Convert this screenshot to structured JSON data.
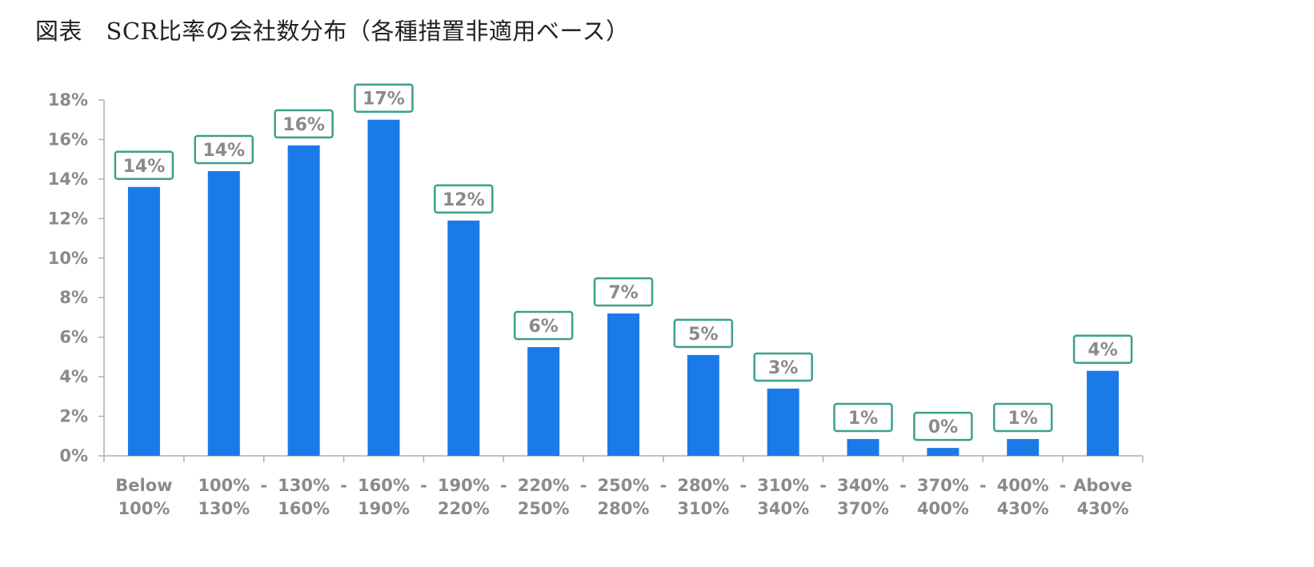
{
  "title": "図表　SCR比率の会社数分布（各種措置非適用ベース）",
  "chart_data": {
    "type": "bar",
    "title": "図表　SCR比率の会社数分布（各種措置非適用ベース）",
    "xlabel": "",
    "ylabel": "",
    "ylim": [
      0,
      18
    ],
    "yticks": [
      "0%",
      "2%",
      "4%",
      "6%",
      "8%",
      "10%",
      "12%",
      "14%",
      "16%",
      "18%"
    ],
    "ytick_values": [
      0,
      2,
      4,
      6,
      8,
      10,
      12,
      14,
      16,
      18
    ],
    "categories": [
      [
        "Below",
        "100%"
      ],
      [
        "100% -",
        "130%"
      ],
      [
        "130% -",
        "160%"
      ],
      [
        "160% -",
        "190%"
      ],
      [
        "190% -",
        "220%"
      ],
      [
        "220% -",
        "250%"
      ],
      [
        "250% -",
        "280%"
      ],
      [
        "280% -",
        "310%"
      ],
      [
        "310% -",
        "340%"
      ],
      [
        "340% -",
        "370%"
      ],
      [
        "370% -",
        "400%"
      ],
      [
        "400% -",
        "430%"
      ],
      [
        "Above",
        "430%"
      ]
    ],
    "category_lines": [
      [
        "Below",
        "100%"
      ],
      [
        "100%",
        "-130%",
        "130%"
      ],
      [
        "-130%",
        "160%"
      ],
      [
        "-160%",
        "190%"
      ],
      [
        "-190%",
        "220%"
      ],
      [
        "-220%",
        "250%"
      ],
      [
        "-250%",
        "280%"
      ],
      [
        "-280%",
        "310%"
      ],
      [
        "-310%",
        "340%"
      ],
      [
        "-340%",
        "370%"
      ],
      [
        "-370%",
        "400%"
      ],
      [
        "-400%",
        "430%"
      ],
      [
        "-",
        "Above",
        "430%"
      ]
    ],
    "values": [
      13.6,
      14.4,
      15.7,
      17.0,
      11.9,
      5.5,
      7.2,
      5.1,
      3.4,
      0.85,
      0.4,
      0.85,
      4.3
    ],
    "data_labels": [
      "14%",
      "14%",
      "16%",
      "17%",
      "12%",
      "6%",
      "7%",
      "5%",
      "3%",
      "1%",
      "0%",
      "1%",
      "4%"
    ],
    "colors": {
      "bar": "#1a7ae8",
      "label_border": "#3aa08c",
      "text": "#8a8a8a",
      "axis": "#b0b0b0"
    },
    "legend": "none",
    "grid": false
  }
}
